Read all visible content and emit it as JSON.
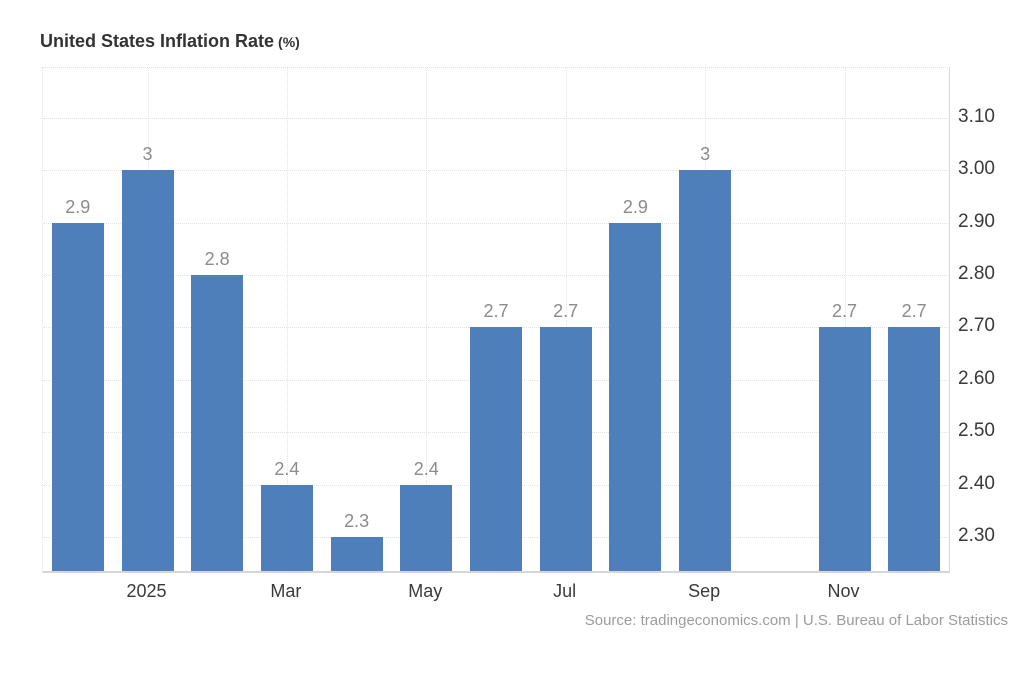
{
  "title": {
    "main": "United States Inflation Rate",
    "unit": "(%)"
  },
  "source": "Source: tradingeconomics.com | U.S. Bureau of Labor Statistics",
  "colors": {
    "bar": "#4e7fba",
    "data_label": "#8b8b8b",
    "axis_label": "#3a3a3a",
    "grid": "#e3e3e3",
    "source_text": "#9c9c9c"
  },
  "chart_data": {
    "type": "bar",
    "title": "United States Inflation Rate (%)",
    "ylabel": "",
    "xlabel": "",
    "slots": 13,
    "bars": [
      {
        "slot": 0,
        "value": 2.9,
        "label": "2.9"
      },
      {
        "slot": 1,
        "value": 3.0,
        "label": "3"
      },
      {
        "slot": 2,
        "value": 2.8,
        "label": "2.8"
      },
      {
        "slot": 3,
        "value": 2.4,
        "label": "2.4"
      },
      {
        "slot": 4,
        "value": 2.3,
        "label": "2.3"
      },
      {
        "slot": 5,
        "value": 2.4,
        "label": "2.4"
      },
      {
        "slot": 6,
        "value": 2.7,
        "label": "2.7"
      },
      {
        "slot": 7,
        "value": 2.7,
        "label": "2.7"
      },
      {
        "slot": 8,
        "value": 2.9,
        "label": "2.9"
      },
      {
        "slot": 9,
        "value": 3.0,
        "label": "3"
      },
      {
        "slot": 11,
        "value": 2.7,
        "label": "2.7"
      },
      {
        "slot": 12,
        "value": 2.7,
        "label": "2.7"
      }
    ],
    "x_ticks": [
      {
        "slot": 1,
        "label": "2025"
      },
      {
        "slot": 3,
        "label": "Mar"
      },
      {
        "slot": 5,
        "label": "May"
      },
      {
        "slot": 7,
        "label": "Jul"
      },
      {
        "slot": 9,
        "label": "Sep"
      },
      {
        "slot": 11,
        "label": "Nov"
      }
    ],
    "y_ticks": [
      {
        "value": 3.1,
        "label": "3.10"
      },
      {
        "value": 3.0,
        "label": "3.00"
      },
      {
        "value": 2.9,
        "label": "2.90"
      },
      {
        "value": 2.8,
        "label": "2.80"
      },
      {
        "value": 2.7,
        "label": "2.70"
      },
      {
        "value": 2.6,
        "label": "2.60"
      },
      {
        "value": 2.5,
        "label": "2.50"
      },
      {
        "value": 2.4,
        "label": "2.40"
      },
      {
        "value": 2.3,
        "label": "2.30"
      }
    ],
    "ylim": [
      2.235,
      3.195
    ],
    "grid": "dotted",
    "legend": "none"
  }
}
